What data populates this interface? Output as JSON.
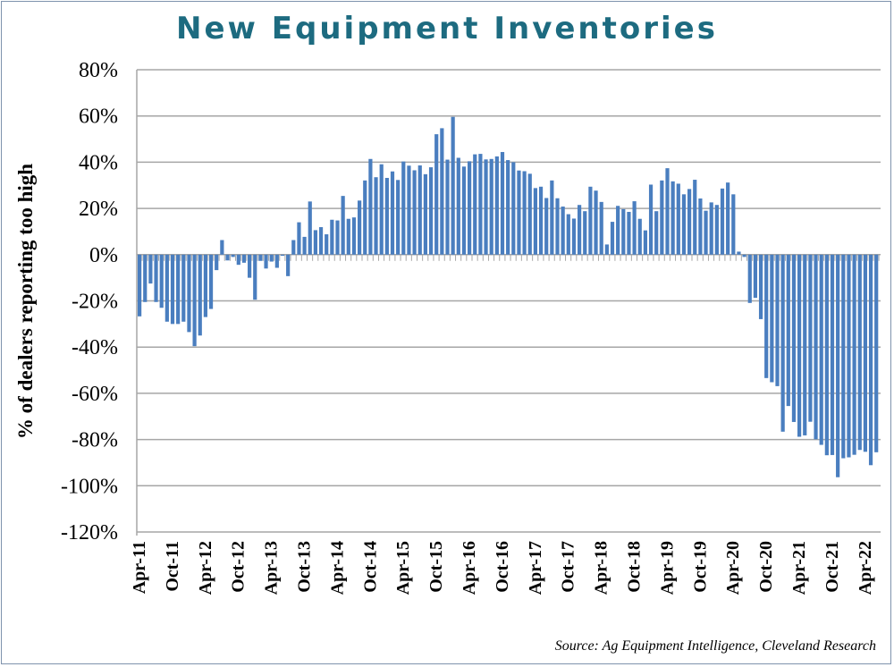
{
  "chart_data": {
    "type": "bar",
    "title": "New Equipment Inventories",
    "ylabel": "% of dealers reporting too high",
    "xlabel": "",
    "source": "Source: Ag Equipment Intelligence, Cleveland Research",
    "ylim": [
      -120,
      80
    ],
    "yticks": [
      "80%",
      "60%",
      "40%",
      "20%",
      "0%",
      "-20%",
      "-40%",
      "-60%",
      "-80%",
      "-100%",
      "-120%"
    ],
    "ytick_values": [
      80,
      60,
      40,
      20,
      0,
      -20,
      -40,
      -60,
      -80,
      -100,
      -120
    ],
    "xtick_labels": [
      "Apr-11",
      "Oct-11",
      "Apr-12",
      "Oct-12",
      "Apr-13",
      "Oct-13",
      "Apr-14",
      "Oct-14",
      "Apr-15",
      "Oct-15",
      "Apr-16",
      "Oct-16",
      "Apr-17",
      "Oct-17",
      "Apr-18",
      "Oct-18",
      "Apr-19",
      "Oct-19",
      "Apr-20",
      "Oct-20",
      "Apr-21",
      "Oct-21",
      "Apr-22"
    ],
    "first_month": "Apr-11",
    "last_month": "Jun-22",
    "grid": true,
    "bar_color": "#4a7ebf",
    "values": [
      -26.7,
      -20.5,
      -12.5,
      -20.5,
      -23,
      -29,
      -30,
      -30,
      -29,
      -33.5,
      -39.6,
      -35,
      -27,
      -23.5,
      -6.7,
      6.3,
      -2.5,
      -1,
      -4.4,
      -3.5,
      -10,
      -19.5,
      -2.7,
      -6,
      -3,
      -5.7,
      -0.5,
      -9.3,
      6.3,
      14,
      7.7,
      23,
      10.6,
      11.9,
      8.8,
      15.1,
      14.8,
      25.4,
      15.5,
      16.1,
      23.4,
      32.1,
      41.4,
      33.5,
      39.1,
      33.2,
      36,
      32.3,
      40.3,
      38.5,
      36.5,
      38.6,
      34.8,
      37.8,
      52.1,
      54.7,
      41.1,
      59.6,
      41.9,
      38.1,
      40.4,
      43.4,
      43.6,
      41.2,
      41.4,
      42.5,
      44.4,
      40.9,
      40,
      36.4,
      36.1,
      35,
      28.8,
      29.4,
      24.5,
      32.1,
      24.4,
      20.8,
      17.5,
      15.6,
      21.5,
      18.8,
      29.4,
      27.7,
      22.8,
      4.4,
      14.2,
      21.1,
      19.7,
      18.5,
      23.1,
      15.5,
      10.5,
      30.3,
      18.8,
      32.1,
      37.4,
      31.7,
      30.7,
      26.1,
      28.4,
      32.4,
      24.3,
      19,
      22.6,
      21.5,
      28.6,
      31.2,
      26.1,
      1.3,
      -1,
      -20.9,
      -18.7,
      -27.9,
      -53.4,
      -55.2,
      -56.9,
      -76.6,
      -65.5,
      -72.4,
      -78.8,
      -78.2,
      -72.3,
      -79.9,
      -82.3,
      -86.8,
      -86.7,
      -96.3,
      -88.1,
      -87.7,
      -86.6,
      -84.5,
      -85.3,
      -91.1,
      -85.5
    ]
  }
}
